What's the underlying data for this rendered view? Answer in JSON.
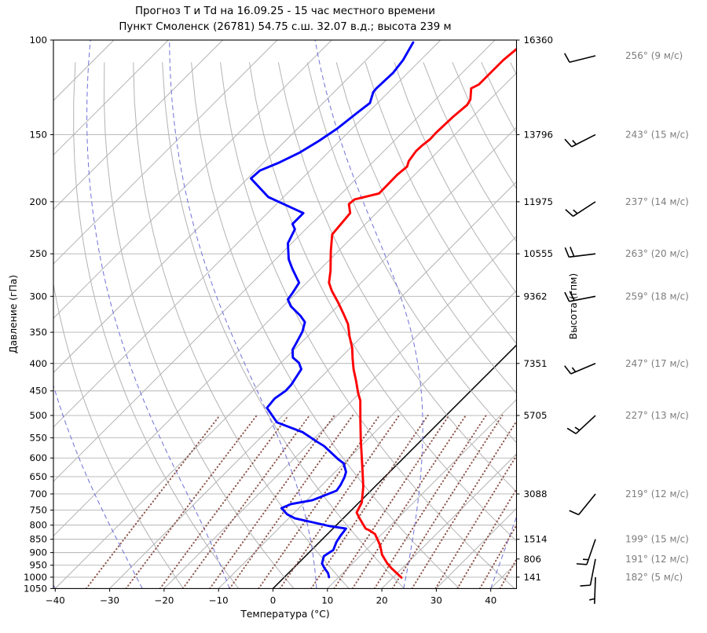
{
  "title": {
    "line1": "Прогноз Т и Td на 16.09.25 - 15 час местного времени",
    "line2": "Пункт Смоленск (26781) 54.75 с.ш. 32.07 в.д.; высота 239 м"
  },
  "axes": {
    "pressure_label": "Давление (гПа)",
    "temperature_label": "Температура (°C)",
    "height_label": "Высота (гпм)",
    "pressure_ticks": [
      100,
      150,
      200,
      250,
      300,
      350,
      400,
      450,
      500,
      550,
      600,
      650,
      700,
      750,
      800,
      850,
      900,
      950,
      1000,
      1050
    ],
    "temperature_ticks": [
      {
        "v": -40,
        "label": "−40"
      },
      {
        "v": -30,
        "label": "−30"
      },
      {
        "v": -20,
        "label": "−20"
      },
      {
        "v": -10,
        "label": "−10"
      },
      {
        "v": 0,
        "label": "0"
      },
      {
        "v": 10,
        "label": "10"
      },
      {
        "v": 20,
        "label": "20"
      },
      {
        "v": 30,
        "label": "30"
      },
      {
        "v": 40,
        "label": "40"
      }
    ],
    "pressure_range_hpa": [
      100,
      1050
    ],
    "temperature_range_c": [
      -40.3,
      44.7
    ]
  },
  "levels": [
    {
      "pressure": 100,
      "height_gpm": "16360",
      "wind_dir_deg": 256,
      "wind_speed_ms": 9,
      "wind_label": "256° (9 м/с)"
    },
    {
      "pressure": 150,
      "height_gpm": "13796",
      "wind_dir_deg": 243,
      "wind_speed_ms": 15,
      "wind_label": "243° (15 м/с)"
    },
    {
      "pressure": 200,
      "height_gpm": "11975",
      "wind_dir_deg": 237,
      "wind_speed_ms": 14,
      "wind_label": "237° (14 м/с)"
    },
    {
      "pressure": 250,
      "height_gpm": "10555",
      "wind_dir_deg": 263,
      "wind_speed_ms": 20,
      "wind_label": "263° (20 м/с)"
    },
    {
      "pressure": 300,
      "height_gpm": "9362",
      "wind_dir_deg": 259,
      "wind_speed_ms": 18,
      "wind_label": "259° (18 м/с)"
    },
    {
      "pressure": 400,
      "height_gpm": "7351",
      "wind_dir_deg": 247,
      "wind_speed_ms": 17,
      "wind_label": "247° (17 м/с)"
    },
    {
      "pressure": 500,
      "height_gpm": "5705",
      "wind_dir_deg": 227,
      "wind_speed_ms": 13,
      "wind_label": "227° (13 м/с)"
    },
    {
      "pressure": 700,
      "height_gpm": "3088",
      "wind_dir_deg": 219,
      "wind_speed_ms": 12,
      "wind_label": "219° (12 м/с)"
    },
    {
      "pressure": 850,
      "height_gpm": "1514",
      "wind_dir_deg": 199,
      "wind_speed_ms": 15,
      "wind_label": "199° (15 м/с)"
    },
    {
      "pressure": 925,
      "height_gpm": "806",
      "wind_dir_deg": 191,
      "wind_speed_ms": 12,
      "wind_label": "191° (12 м/с)"
    },
    {
      "pressure": 1000,
      "height_gpm": "141",
      "wind_dir_deg": 182,
      "wind_speed_ms": 5,
      "wind_label": "182° (5 м/с)"
    }
  ],
  "chart_data": {
    "type": "line",
    "projection": "skew-T log-p (45° skew)",
    "title": "Прогноз Т и Td на 16.09.25 - 15 час местного времени",
    "xlabel": "Температура (°C)",
    "ylabel": "Давление (гПа)",
    "y2label": "Высота (гпм)",
    "xlim": [
      -40.3,
      44.7
    ],
    "ylim_hpa": [
      1050,
      100
    ],
    "grid": true,
    "series": [
      {
        "name": "temperature",
        "color": "#ff0000",
        "points_p_T": [
          [
            1002,
            21.6
          ],
          [
            962,
            18.0
          ],
          [
            943,
            16.4
          ],
          [
            908,
            13.8
          ],
          [
            875,
            11.9
          ],
          [
            851,
            10.2
          ],
          [
            831,
            8.7
          ],
          [
            818,
            7.0
          ],
          [
            812,
            6.0
          ],
          [
            777,
            3.0
          ],
          [
            758,
            1.4
          ],
          [
            726,
            0.5
          ],
          [
            679,
            -2.1
          ],
          [
            635,
            -5.1
          ],
          [
            555,
            -11.2
          ],
          [
            510,
            -14.9
          ],
          [
            469,
            -18.5
          ],
          [
            454,
            -20.3
          ],
          [
            431,
            -22.9
          ],
          [
            410,
            -25.5
          ],
          [
            392,
            -27.6
          ],
          [
            374,
            -29.7
          ],
          [
            356,
            -32.3
          ],
          [
            338,
            -34.8
          ],
          [
            324,
            -37.4
          ],
          [
            308,
            -40.6
          ],
          [
            293,
            -43.9
          ],
          [
            283,
            -45.9
          ],
          [
            269,
            -47.8
          ],
          [
            247,
            -51.4
          ],
          [
            230,
            -54.2
          ],
          [
            210,
            -54.8
          ],
          [
            202,
            -56.7
          ],
          [
            198,
            -56.5
          ],
          [
            193,
            -53.1
          ],
          [
            178,
            -53.2
          ],
          [
            172,
            -52.9
          ],
          [
            168,
            -53.6
          ],
          [
            161,
            -54.1
          ],
          [
            157,
            -54.0
          ],
          [
            153,
            -53.7
          ],
          [
            149,
            -53.8
          ],
          [
            139,
            -53.6
          ],
          [
            132,
            -53.2
          ],
          [
            129,
            -53.6
          ],
          [
            123,
            -55.5
          ],
          [
            121,
            -54.8
          ],
          [
            115,
            -54.8
          ],
          [
            109,
            -54.8
          ],
          [
            104,
            -54.4
          ]
        ]
      },
      {
        "name": "dewpoint",
        "color": "#0000ff",
        "points_p_T": [
          [
            1000,
            8.2
          ],
          [
            983,
            7.3
          ],
          [
            962,
            5.7
          ],
          [
            943,
            4.4
          ],
          [
            914,
            3.4
          ],
          [
            890,
            4.0
          ],
          [
            860,
            3.1
          ],
          [
            837,
            2.7
          ],
          [
            812,
            2.4
          ],
          [
            804,
            -0.9
          ],
          [
            790,
            -5.0
          ],
          [
            777,
            -8.9
          ],
          [
            764,
            -11.0
          ],
          [
            744,
            -13.2
          ],
          [
            731,
            -12.2
          ],
          [
            719,
            -9.0
          ],
          [
            690,
            -6.3
          ],
          [
            674,
            -6.6
          ],
          [
            652,
            -7.3
          ],
          [
            637,
            -8.0
          ],
          [
            614,
            -10.0
          ],
          [
            603,
            -11.8
          ],
          [
            570,
            -16.8
          ],
          [
            560,
            -18.8
          ],
          [
            537,
            -23.3
          ],
          [
            515,
            -29.8
          ],
          [
            484,
            -34.3
          ],
          [
            465,
            -34.6
          ],
          [
            450,
            -34.0
          ],
          [
            438,
            -34.1
          ],
          [
            410,
            -35.1
          ],
          [
            399,
            -36.7
          ],
          [
            390,
            -38.8
          ],
          [
            377,
            -40.3
          ],
          [
            367,
            -40.8
          ],
          [
            349,
            -41.8
          ],
          [
            335,
            -43.1
          ],
          [
            326,
            -45.1
          ],
          [
            313,
            -48.6
          ],
          [
            304,
            -50.4
          ],
          [
            296,
            -50.7
          ],
          [
            283,
            -51.4
          ],
          [
            267,
            -55.1
          ],
          [
            256,
            -57.6
          ],
          [
            239,
            -60.7
          ],
          [
            225,
            -62.0
          ],
          [
            220,
            -63.4
          ],
          [
            210,
            -63.4
          ],
          [
            196,
            -72.8
          ],
          [
            181,
            -79.4
          ],
          [
            175,
            -79.2
          ],
          [
            169,
            -77.1
          ],
          [
            162,
            -75.2
          ],
          [
            154,
            -73.8
          ],
          [
            146,
            -72.7
          ],
          [
            136,
            -71.9
          ],
          [
            131,
            -71.4
          ],
          [
            125,
            -72.8
          ],
          [
            123,
            -72.9
          ],
          [
            115,
            -72.7
          ],
          [
            109,
            -73.2
          ],
          [
            101,
            -74.6
          ]
        ]
      }
    ],
    "background": {
      "isotherm_step_c": 10,
      "zero_isotherm_color": "#000000",
      "isotherm_color": "#b3b3b3",
      "grid_color": "#b3b3b3",
      "dry_adiabats_theta_c": [
        -20,
        -10,
        0,
        10,
        20,
        30,
        40,
        50,
        60,
        70,
        80,
        90,
        100,
        110,
        120,
        130,
        140,
        150
      ],
      "dry_adiabat_color": "#b3b3b3",
      "moist_adiabats_start_c_at_1050": [
        -72,
        -56,
        -40,
        -24,
        -8,
        8,
        24,
        40
      ],
      "moist_adiabat_color": "#6f6fd8",
      "mixing_ratio_g_kg": [
        0.2,
        0.4,
        0.7,
        1,
        1.5,
        2,
        3,
        4,
        6,
        8,
        10,
        13,
        16,
        20,
        26,
        33,
        42,
        52,
        64
      ],
      "mixing_ratio_color": "#8c564b",
      "wind_label_color": "#7d7d7d",
      "barb_color": "#000000"
    }
  }
}
